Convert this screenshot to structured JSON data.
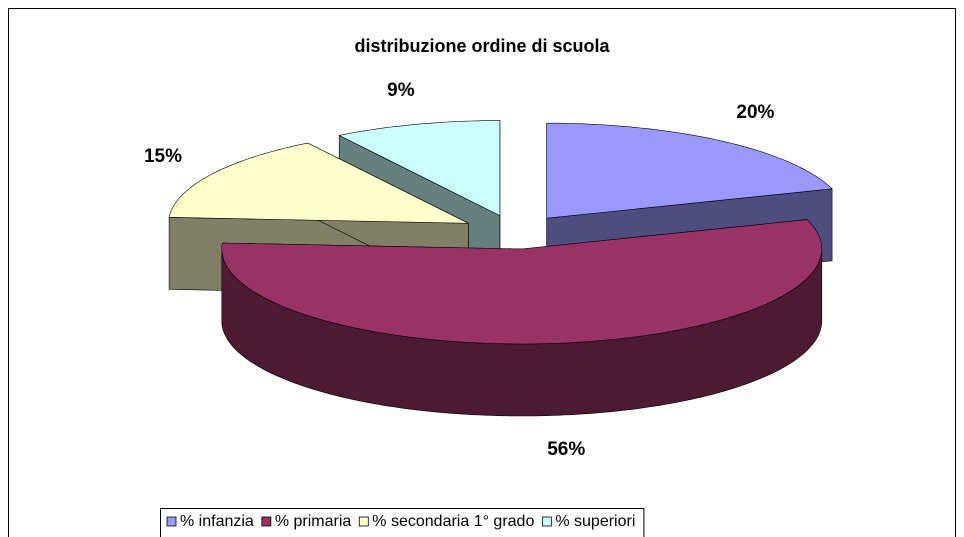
{
  "chart_data": {
    "type": "pie",
    "title": "distribuzione ordine di scuola",
    "categories": [
      "% infanzia",
      "% primaria",
      "% secondaria 1° grado",
      "% superiori"
    ],
    "values": [
      20,
      56,
      15,
      9
    ],
    "value_labels": [
      "20%",
      "56%",
      "15%",
      "9%"
    ],
    "colors": [
      "#9999ff",
      "#993366",
      "#ffffcc",
      "#ccffff"
    ],
    "legend": "bottom",
    "exploded": true
  }
}
